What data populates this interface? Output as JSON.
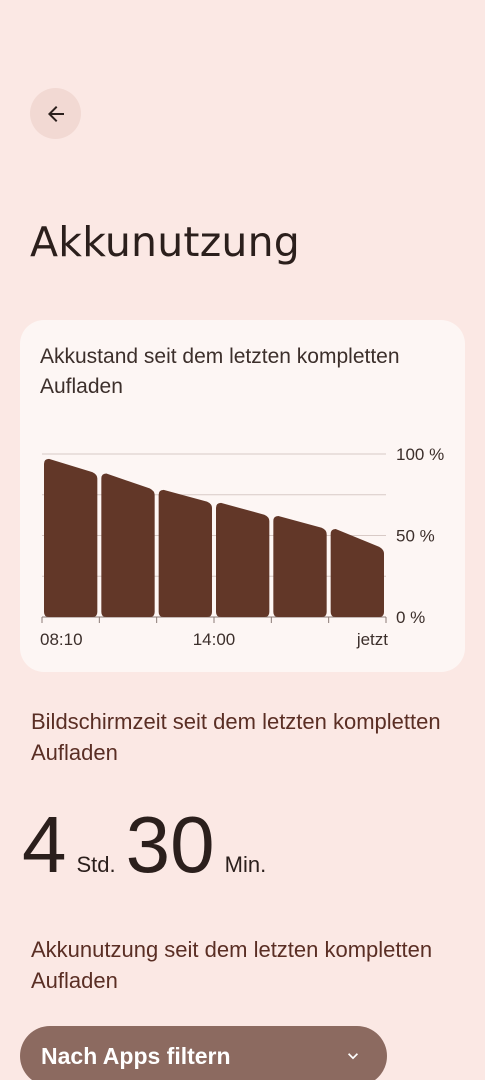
{
  "header": {
    "title": "Akkunutzung"
  },
  "battery_card": {
    "title": "Akkustand seit dem letzten kompletten Aufladen",
    "y_ticks": [
      "100 %",
      "50 %",
      "0 %"
    ],
    "x_ticks": [
      "08:10",
      "14:00",
      "jetzt"
    ]
  },
  "chart_data": {
    "type": "area",
    "title": "Akkustand seit dem letzten kompletten Aufladen",
    "ylabel": "",
    "xlabel": "",
    "ylim": [
      0,
      100
    ],
    "y_ticks": [
      0,
      50,
      100
    ],
    "x_tick_labels": [
      "08:10",
      "14:00",
      "jetzt"
    ],
    "x": [
      0,
      1,
      2,
      3,
      4,
      5,
      6
    ],
    "values": [
      97,
      88,
      78,
      70,
      62,
      54,
      42
    ],
    "color": "#623728",
    "grid": true
  },
  "screen_time": {
    "title": "Bildschirmzeit seit dem letzten kompletten Aufladen",
    "hours": "4",
    "hours_unit": "Std.",
    "minutes": "30",
    "minutes_unit": "Min."
  },
  "usage": {
    "title": "Akkunutzung seit dem letzten kompletten Aufladen",
    "filter_label": "Nach Apps filtern"
  },
  "colors": {
    "background": "#fbe8e4",
    "card": "#fdf6f4",
    "bar": "#623728",
    "accent_text": "#5a2e24",
    "filter_button": "#8c6a60"
  }
}
